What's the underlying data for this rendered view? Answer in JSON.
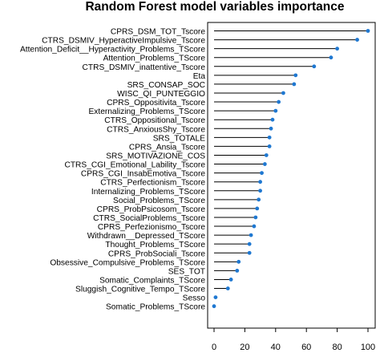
{
  "chart_data": {
    "type": "lollipop",
    "title": "Random Forest model variables importance",
    "xlabel": "",
    "ylabel": "",
    "xlim": [
      0,
      100
    ],
    "xticks": [
      0,
      20,
      40,
      60,
      80,
      100
    ],
    "grid": false,
    "orientation": "horizontal",
    "colors": {
      "point": "#1f78d1",
      "stem": "#000000",
      "axis": "#000000",
      "background": "#ffffff"
    },
    "categories": [
      "CPRS_DSM_TOT_Tscore",
      "CTRS_DSMIV_HyperactiveImpulsive_Tscore",
      "Attention_Deficit__Hyperactivity_Problems_TScore",
      "Attention_Problems_TScore",
      "CTRS_DSMIV_inattentive_Tscore",
      "Eta",
      "SRS_CONSAP_SOC",
      "WISC_QI_PUNTEGGIO",
      "CPRS_Oppositivita_Tscore",
      "Externalizing_Problems_TScore",
      "CTRS_Oppositional_Tscore",
      "CTRS_AnxiousShy_Tscore",
      "SRS_TOTALE",
      "CPRS_Ansia_Tscore",
      "SRS_MOTIVAZIONE_COS",
      "CTRS_CGI_Emotional_Lability_Tscore",
      "CPRS_CGI_InsabEmotiva_Tscore",
      "CTRS_Perfectionism_Tscore",
      "Internalizing_Problems_TScore",
      "Social_Problems_TScore",
      "CPRS_ProbPsicosom_Tscore",
      "CTRS_SocialProblems_Tscore",
      "CPRS_Perfezionismo_Tscore",
      "Withdrawn__Depressed_TScore",
      "Thought_Problems_TScore",
      "CPRS_ProbSociali_Tscore",
      "Obsessive_Compulsive_Problems_TScore",
      "SES_TOT",
      "Somatic_Complaints_TScore",
      "Sluggish_Cognitive_Tempo_TScore",
      "Sesso",
      "Somatic_Problems_TScore"
    ],
    "values": [
      100,
      93,
      80,
      76,
      65,
      53,
      52,
      45,
      42,
      40,
      38,
      37,
      36,
      36,
      34,
      33,
      31,
      30,
      30,
      29,
      28,
      27,
      26,
      24,
      23,
      23,
      16,
      15,
      11,
      9,
      1,
      0
    ]
  }
}
